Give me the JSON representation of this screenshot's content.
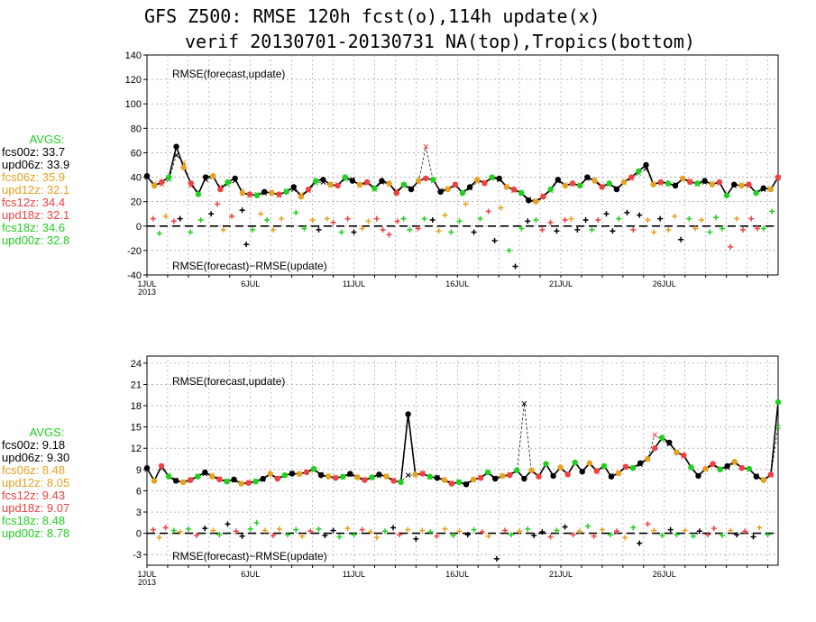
{
  "title_line1": "GFS Z500: RMSE 120h fcst(o),114h update(x)",
  "title_line2": "verif 20130701-20130731 NA(top),Tropics(bottom)",
  "legend": [
    {
      "name": "fcs00z",
      "color": "#000000"
    },
    {
      "name": "upd06z",
      "color": "#000000"
    },
    {
      "name": "fcs06z",
      "color": "#e8a020"
    },
    {
      "name": "upd12z",
      "color": "#e8a020"
    },
    {
      "name": "fcs12z",
      "color": "#f04040"
    },
    {
      "name": "upd18z",
      "color": "#f04040"
    },
    {
      "name": "fcs18z",
      "color": "#20d020"
    },
    {
      "name": "upd00z",
      "color": "#20d020"
    }
  ],
  "avgs_label": "AVGS:",
  "x_tick_labels": [
    "1JUL",
    "6JUL",
    "11JUL",
    "16JUL",
    "21JUL",
    "26JUL"
  ],
  "year_label": "2013",
  "panel_label_top": "RMSE(forecast,update)",
  "panel_label_bottom": "RMSE(forecast)−RMSE(update)",
  "chart_data": [
    {
      "type": "line",
      "region": "NA",
      "ylim": [
        -40,
        140
      ],
      "yticks": [
        -40,
        -20,
        0,
        20,
        40,
        60,
        80,
        100,
        120,
        140
      ],
      "xrange": [
        1,
        31.5
      ],
      "grid": true,
      "averages": [
        "33.7",
        "33.9",
        "35.9",
        "32.1",
        "34.4",
        "32.1",
        "34.6",
        "32.8"
      ],
      "series_fcst": [
        41,
        33,
        36,
        40,
        65,
        48,
        35,
        26,
        40,
        41,
        30,
        36,
        39,
        27,
        26,
        25,
        28,
        27,
        26,
        28,
        32,
        24,
        30,
        37,
        38,
        34,
        33,
        40,
        37,
        34,
        36,
        31,
        37,
        35,
        27,
        34,
        30,
        37,
        39,
        38,
        28,
        30,
        34,
        27,
        32,
        38,
        35,
        40,
        39,
        32,
        30,
        27,
        21,
        20,
        24,
        30,
        38,
        33,
        35,
        33,
        40,
        37,
        32,
        35,
        30,
        36,
        40,
        45,
        50,
        34,
        36,
        35,
        33,
        39,
        36,
        35,
        37,
        34,
        36,
        25,
        34,
        33,
        34,
        27,
        31,
        30,
        40
      ],
      "series_update": [
        40,
        35,
        34,
        38,
        58,
        52,
        33,
        28,
        38,
        40,
        32,
        34,
        37,
        29,
        25,
        26,
        27,
        28,
        25,
        29,
        30,
        26,
        29,
        35,
        36,
        33,
        34,
        38,
        38,
        33,
        35,
        30,
        36,
        34,
        29,
        33,
        31,
        36,
        65,
        37,
        29,
        31,
        33,
        28,
        31,
        36,
        36,
        39,
        38,
        33,
        29,
        28,
        22,
        21,
        25,
        29,
        37,
        34,
        34,
        34,
        39,
        38,
        33,
        34,
        31,
        35,
        39,
        43,
        47,
        35,
        35,
        34,
        34,
        38,
        37,
        34,
        36,
        35,
        35,
        26,
        33,
        34,
        33,
        28,
        30,
        31,
        39
      ],
      "diff_points": [
        [
          1.3,
          6,
          "#f04040"
        ],
        [
          1.6,
          -6,
          "#20d020"
        ],
        [
          1.9,
          8,
          "#e8a020"
        ],
        [
          2.3,
          4,
          "#f04040"
        ],
        [
          2.6,
          6,
          "#000000"
        ],
        [
          3.1,
          -5,
          "#20d020"
        ],
        [
          3.6,
          5,
          "#20d020"
        ],
        [
          4.1,
          10,
          "#000000"
        ],
        [
          4.4,
          18,
          "#f04040"
        ],
        [
          4.7,
          -3,
          "#e8a020"
        ],
        [
          5.1,
          8,
          "#f04040"
        ],
        [
          5.6,
          13,
          "#000000"
        ],
        [
          5.8,
          -15,
          "#000000"
        ],
        [
          6.1,
          -3,
          "#20d020"
        ],
        [
          6.5,
          10,
          "#e8a020"
        ],
        [
          6.8,
          5,
          "#20d020"
        ],
        [
          7.1,
          -3,
          "#e8a020"
        ],
        [
          7.5,
          6,
          "#e8a020"
        ],
        [
          8.2,
          11,
          "#20d020"
        ],
        [
          8.6,
          -2,
          "#20d020"
        ],
        [
          9.0,
          5,
          "#e8a020"
        ],
        [
          9.3,
          -3,
          "#000000"
        ],
        [
          9.7,
          6,
          "#e8a020"
        ],
        [
          10.0,
          3,
          "#f04040"
        ],
        [
          10.4,
          -5,
          "#20d020"
        ],
        [
          10.7,
          6,
          "#f04040"
        ],
        [
          11.0,
          -5,
          "#000000"
        ],
        [
          11.4,
          -2,
          "#e8a020"
        ],
        [
          11.7,
          4,
          "#e8a020"
        ],
        [
          12.1,
          6,
          "#f04040"
        ],
        [
          12.4,
          -3,
          "#f04040"
        ],
        [
          12.7,
          -7,
          "#f04040"
        ],
        [
          13.1,
          4,
          "#f04040"
        ],
        [
          13.4,
          6,
          "#20d020"
        ],
        [
          13.7,
          -3,
          "#20d020"
        ],
        [
          14.1,
          -2,
          "#f04040"
        ],
        [
          14.4,
          6,
          "#20d020"
        ],
        [
          14.8,
          5,
          "#000000"
        ],
        [
          15.1,
          -4,
          "#e8a020"
        ],
        [
          15.4,
          9,
          "#e8a020"
        ],
        [
          15.7,
          -5,
          "#20d020"
        ],
        [
          16.1,
          4,
          "#20d020"
        ],
        [
          16.4,
          18,
          "#e8a020"
        ],
        [
          16.8,
          -5,
          "#000000"
        ],
        [
          17.1,
          6,
          "#20d020"
        ],
        [
          17.5,
          12,
          "#f04040"
        ],
        [
          17.8,
          -12,
          "#000000"
        ],
        [
          18.1,
          15,
          "#e8a020"
        ],
        [
          18.5,
          -20,
          "#20d020"
        ],
        [
          18.8,
          -33,
          "#000000"
        ],
        [
          19.1,
          -2,
          "#20d020"
        ],
        [
          19.4,
          4,
          "#000000"
        ],
        [
          19.8,
          5,
          "#20d020"
        ],
        [
          20.1,
          -3,
          "#f04040"
        ],
        [
          20.5,
          3,
          "#f04040"
        ],
        [
          20.8,
          -4,
          "#000000"
        ],
        [
          21.2,
          5,
          "#f04040"
        ],
        [
          21.5,
          6,
          "#e8a020"
        ],
        [
          21.8,
          -3,
          "#000000"
        ],
        [
          22.2,
          5,
          "#000000"
        ],
        [
          22.5,
          -3,
          "#20d020"
        ],
        [
          22.8,
          5,
          "#f04040"
        ],
        [
          23.2,
          10,
          "#000000"
        ],
        [
          23.5,
          -4,
          "#000000"
        ],
        [
          23.8,
          6,
          "#20d020"
        ],
        [
          24.2,
          11,
          "#000000"
        ],
        [
          24.5,
          -3,
          "#f04040"
        ],
        [
          24.8,
          9,
          "#000000"
        ],
        [
          25.2,
          5,
          "#e8a020"
        ],
        [
          25.5,
          -5,
          "#e8a020"
        ],
        [
          25.8,
          6,
          "#000000"
        ],
        [
          26.2,
          -3,
          "#e8a020"
        ],
        [
          26.5,
          8,
          "#e8a020"
        ],
        [
          26.8,
          -11,
          "#000000"
        ],
        [
          27.2,
          6,
          "#20d020"
        ],
        [
          27.5,
          -2,
          "#e8a020"
        ],
        [
          27.8,
          5,
          "#e8a020"
        ],
        [
          28.2,
          -5,
          "#20d020"
        ],
        [
          28.5,
          7,
          "#20d020"
        ],
        [
          28.8,
          -2,
          "#20d020"
        ],
        [
          29.2,
          -17,
          "#f04040"
        ],
        [
          29.5,
          6,
          "#e8a020"
        ],
        [
          29.8,
          -3,
          "#f04040"
        ],
        [
          30.2,
          6,
          "#f04040"
        ],
        [
          30.5,
          -2,
          "#f04040"
        ],
        [
          30.8,
          -2,
          "#20d020"
        ],
        [
          31.2,
          12,
          "#20d020"
        ]
      ]
    },
    {
      "type": "line",
      "region": "Tropics",
      "ylim": [
        -4.5,
        25
      ],
      "yticks": [
        -3,
        0,
        3,
        6,
        9,
        12,
        15,
        18,
        21,
        24
      ],
      "xrange": [
        1,
        31.5
      ],
      "grid": true,
      "averages": [
        "9.18",
        "9.30",
        "8.48",
        "8.05",
        "9.43",
        "9.07",
        "8.48",
        "8.78"
      ],
      "series_fcst": [
        9.2,
        7.4,
        9.5,
        8.0,
        7.4,
        7.2,
        7.5,
        8.0,
        8.6,
        8.0,
        7.6,
        7.3,
        7.6,
        7.0,
        7.1,
        7.3,
        7.7,
        8.4,
        7.7,
        8.2,
        8.4,
        8.4,
        8.6,
        9.1,
        8.2,
        8.0,
        7.8,
        8.0,
        8.4,
        7.9,
        7.5,
        7.9,
        8.3,
        8.0,
        7.4,
        7.2,
        16.8,
        8.3,
        8.4,
        8.0,
        7.8,
        7.5,
        7.0,
        7.2,
        6.9,
        7.6,
        7.8,
        8.6,
        7.7,
        8.1,
        8.2,
        8.9,
        7.7,
        8.9,
        8.0,
        9.8,
        8.1,
        9.3,
        8.3,
        10.0,
        8.7,
        9.9,
        8.8,
        9.5,
        8.0,
        8.5,
        9.4,
        9.2,
        9.9,
        10.5,
        12.0,
        13.5,
        12.8,
        11.4,
        11.0,
        9.3,
        8.1,
        9.1,
        9.8,
        9.0,
        9.5,
        10.1,
        9.2,
        9.1,
        8.0,
        7.5,
        8.3,
        18.5
      ],
      "series_update": [
        9.0,
        7.6,
        9.2,
        8.2,
        7.5,
        7.3,
        7.6,
        8.1,
        8.4,
        8.2,
        7.7,
        7.4,
        7.5,
        7.1,
        7.2,
        7.4,
        7.6,
        8.3,
        7.8,
        8.1,
        8.5,
        8.3,
        8.7,
        8.9,
        8.3,
        8.1,
        7.9,
        7.9,
        8.3,
        8.0,
        7.6,
        7.8,
        8.2,
        8.1,
        7.5,
        7.3,
        8.2,
        8.2,
        8.5,
        7.9,
        7.9,
        7.6,
        7.1,
        7.3,
        7.0,
        7.5,
        7.9,
        8.5,
        7.8,
        8.0,
        8.3,
        8.8,
        18.3,
        8.7,
        8.1,
        9.6,
        8.2,
        9.1,
        8.4,
        9.8,
        8.8,
        9.7,
        8.7,
        9.4,
        8.1,
        8.4,
        9.3,
        9.3,
        9.7,
        10.4,
        13.9,
        13.2,
        12.6,
        11.5,
        10.8,
        9.4,
        8.2,
        9.0,
        9.6,
        9.1,
        9.3,
        9.9,
        9.3,
        9.0,
        8.1,
        7.6,
        8.2,
        15.0
      ],
      "diff_points": [
        [
          1.3,
          0.5,
          "#f04040"
        ],
        [
          1.6,
          -0.6,
          "#e8a020"
        ],
        [
          1.9,
          0.8,
          "#f04040"
        ],
        [
          2.3,
          0.4,
          "#20d020"
        ],
        [
          2.6,
          0.2,
          "#e8a020"
        ],
        [
          3.0,
          0.6,
          "#20d020"
        ],
        [
          3.4,
          -0.3,
          "#f04040"
        ],
        [
          3.8,
          0.7,
          "#000000"
        ],
        [
          4.2,
          0.4,
          "#e8a020"
        ],
        [
          4.5,
          -0.2,
          "#20d020"
        ],
        [
          4.9,
          1.3,
          "#000000"
        ],
        [
          5.3,
          0.3,
          "#f04040"
        ],
        [
          5.6,
          -0.4,
          "#000000"
        ],
        [
          6.0,
          0.6,
          "#20d020"
        ],
        [
          6.3,
          1.5,
          "#20d020"
        ],
        [
          6.7,
          0.4,
          "#e8a020"
        ],
        [
          7.1,
          -0.3,
          "#f04040"
        ],
        [
          7.4,
          0.6,
          "#e8a020"
        ],
        [
          7.8,
          -0.2,
          "#20d020"
        ],
        [
          8.2,
          0.5,
          "#20d020"
        ],
        [
          8.5,
          -0.4,
          "#e8a020"
        ],
        [
          8.9,
          0.3,
          "#f04040"
        ],
        [
          9.3,
          0.6,
          "#20d020"
        ],
        [
          9.6,
          -0.3,
          "#000000"
        ],
        [
          10.0,
          0.4,
          "#000000"
        ],
        [
          10.3,
          -0.5,
          "#20d020"
        ],
        [
          10.7,
          0.7,
          "#e8a020"
        ],
        [
          11.0,
          -0.2,
          "#20d020"
        ],
        [
          11.4,
          0.5,
          "#f04040"
        ],
        [
          11.8,
          0.2,
          "#e8a020"
        ],
        [
          12.1,
          -0.6,
          "#e8a020"
        ],
        [
          12.5,
          0.3,
          "#20d020"
        ],
        [
          12.9,
          0.8,
          "#000000"
        ],
        [
          13.2,
          -0.2,
          "#f04040"
        ],
        [
          13.6,
          0.5,
          "#e8a020"
        ],
        [
          14.0,
          -0.8,
          "#000000"
        ],
        [
          14.3,
          0.4,
          "#e8a020"
        ],
        [
          14.7,
          0.2,
          "#20d020"
        ],
        [
          15.0,
          -0.4,
          "#f04040"
        ],
        [
          15.4,
          0.6,
          "#e8a020"
        ],
        [
          15.8,
          -0.3,
          "#20d020"
        ],
        [
          16.1,
          0.3,
          "#e8a020"
        ],
        [
          16.5,
          -0.2,
          "#000000"
        ],
        [
          16.8,
          0.5,
          "#20d020"
        ],
        [
          17.2,
          0.2,
          "#f04040"
        ],
        [
          17.5,
          -0.4,
          "#e8a020"
        ],
        [
          17.9,
          -3.6,
          "#000000"
        ],
        [
          18.3,
          0.4,
          "#f04040"
        ],
        [
          18.6,
          -0.2,
          "#20d020"
        ],
        [
          19.0,
          0.3,
          "#e8a020"
        ],
        [
          19.4,
          0.6,
          "#20d020"
        ],
        [
          19.7,
          -0.3,
          "#000000"
        ],
        [
          20.1,
          0.2,
          "#000000"
        ],
        [
          20.5,
          -0.5,
          "#f04040"
        ],
        [
          20.8,
          0.4,
          "#20d020"
        ],
        [
          21.2,
          0.9,
          "#000000"
        ],
        [
          21.6,
          -0.2,
          "#f04040"
        ],
        [
          21.9,
          0.3,
          "#e8a020"
        ],
        [
          22.3,
          1.0,
          "#20d020"
        ],
        [
          22.6,
          -0.4,
          "#f04040"
        ],
        [
          23.0,
          0.5,
          "#e8a020"
        ],
        [
          23.4,
          -0.2,
          "#20d020"
        ],
        [
          23.7,
          0.3,
          "#f04040"
        ],
        [
          24.1,
          -0.6,
          "#e8a020"
        ],
        [
          24.5,
          0.8,
          "#20d020"
        ],
        [
          24.8,
          -1.4,
          "#000000"
        ],
        [
          25.2,
          1.3,
          "#f04040"
        ],
        [
          25.5,
          0.4,
          "#e8a020"
        ],
        [
          25.9,
          -0.3,
          "#20d020"
        ],
        [
          26.3,
          0.5,
          "#000000"
        ],
        [
          26.6,
          -0.2,
          "#20d020"
        ],
        [
          27.0,
          0.4,
          "#e8a020"
        ],
        [
          27.4,
          -0.4,
          "#20d020"
        ],
        [
          27.7,
          0.3,
          "#000000"
        ],
        [
          28.1,
          -0.2,
          "#f04040"
        ],
        [
          28.4,
          0.7,
          "#f04040"
        ],
        [
          28.8,
          -0.3,
          "#20d020"
        ],
        [
          29.2,
          0.4,
          "#e8a020"
        ],
        [
          29.5,
          -0.2,
          "#000000"
        ],
        [
          29.9,
          0.3,
          "#f04040"
        ],
        [
          30.3,
          -0.5,
          "#000000"
        ],
        [
          30.6,
          0.8,
          "#e8a020"
        ],
        [
          31.0,
          -0.2,
          "#20d020"
        ]
      ]
    }
  ]
}
